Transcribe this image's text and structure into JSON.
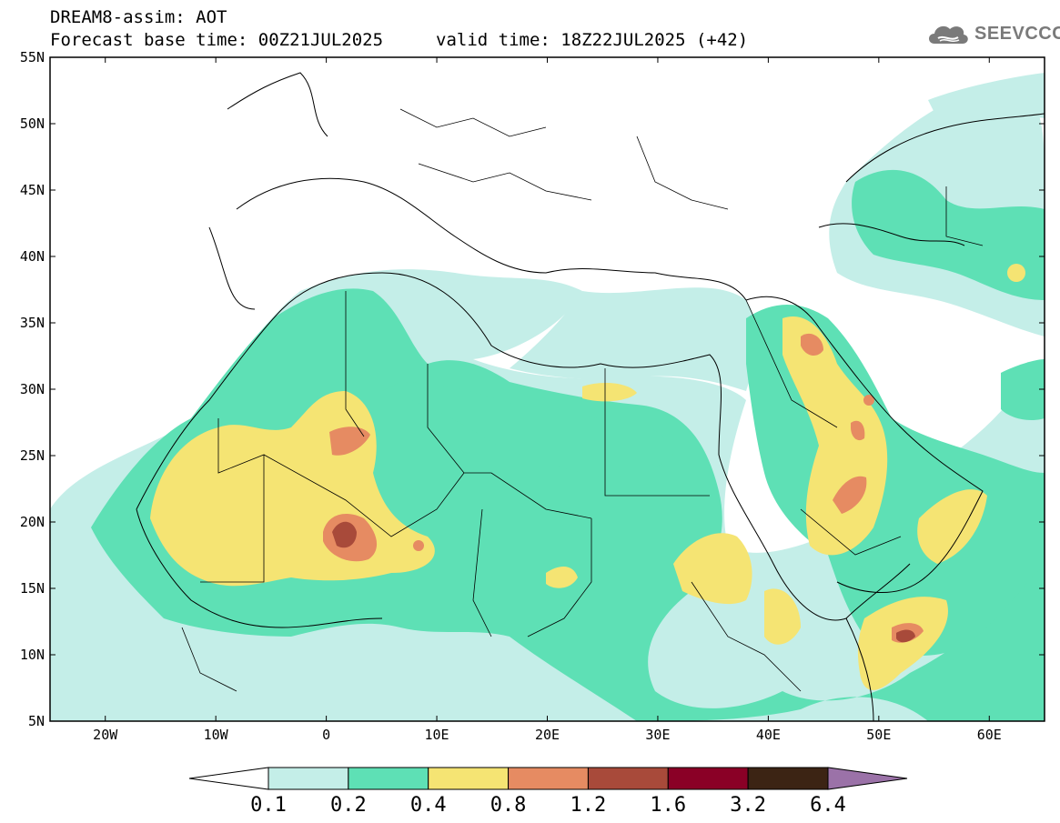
{
  "header": {
    "title": "DREAM8-assim: AOT",
    "base_time": "Forecast base time: 00Z21JUL2025",
    "valid_time": "valid time: 18Z22JUL2025 (+42)"
  },
  "logo": {
    "text": "SEEVCCC",
    "color": "#7a7a7a"
  },
  "map": {
    "projection": "lat-lon",
    "lon_range": [
      -25,
      65
    ],
    "lat_range": [
      5,
      55
    ],
    "lat_ticks": [
      "55N",
      "50N",
      "45N",
      "40N",
      "35N",
      "30N",
      "25N",
      "20N",
      "15N",
      "10N",
      "5N"
    ],
    "lon_ticks": [
      "20W",
      "10W",
      "0",
      "10E",
      "20E",
      "30E",
      "40E",
      "50E",
      "60E"
    ]
  },
  "colorbar": {
    "labels": [
      "0.1",
      "0.2",
      "0.4",
      "0.8",
      "1.2",
      "1.6",
      "3.2",
      "6.4"
    ],
    "colors": [
      "#ffffff",
      "#c4eee8",
      "#5ee0b5",
      "#f5e473",
      "#e68b62",
      "#a84a3a",
      "#8a0026",
      "#3c2414",
      "#9b72a8"
    ]
  }
}
